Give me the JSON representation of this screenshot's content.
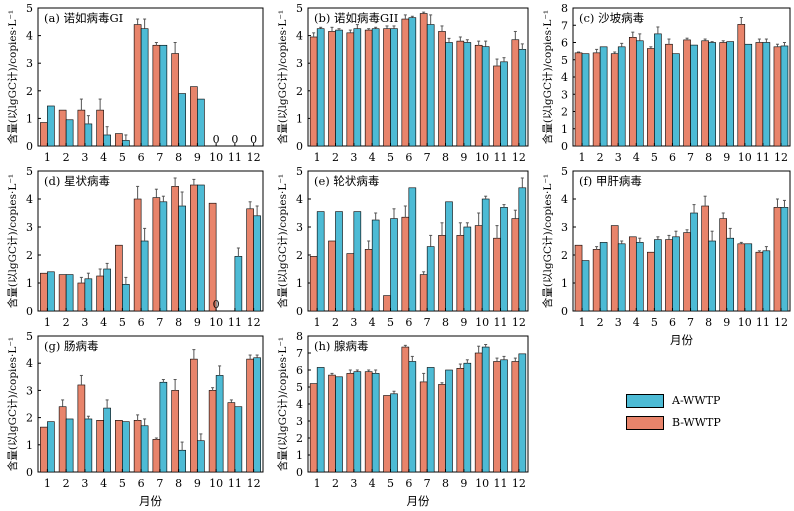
{
  "colors": {
    "a_wwtp": "#4DBBD5",
    "b_wwtp": "#E8846B",
    "axis": "#000000",
    "error_bar": "#555555"
  },
  "legend": {
    "placement": "bottom-right",
    "items": [
      {
        "label": "A-WWTP",
        "color": "#4DBBD5"
      },
      {
        "label": "B-WWTP",
        "color": "#E8846B"
      }
    ]
  },
  "chart_data": [
    {
      "type": "bar",
      "title": "(a) 诺如病毒GI",
      "ylabel": "含量(以lgGC计)/copies·L⁻¹",
      "xlabel": "",
      "ylim": [
        0,
        5
      ],
      "yticks": [
        0,
        1,
        2,
        3,
        4,
        5
      ],
      "categories": [
        "1",
        "2",
        "3",
        "4",
        "5",
        "6",
        "7",
        "8",
        "9",
        "10",
        "11",
        "12"
      ],
      "series": [
        {
          "name": "B-WWTP",
          "values": [
            0.85,
            1.3,
            1.3,
            1.3,
            0.45,
            4.4,
            3.65,
            3.35,
            2.15,
            0,
            0,
            0
          ],
          "errors": [
            0,
            0,
            0.4,
            0.4,
            0,
            0.2,
            0.1,
            0.4,
            0,
            0,
            0,
            0
          ]
        },
        {
          "name": "A-WWTP",
          "values": [
            1.45,
            0.95,
            0.8,
            0.4,
            0.2,
            4.25,
            3.65,
            1.9,
            1.7,
            0,
            0,
            0
          ],
          "errors": [
            0,
            0,
            0.3,
            0.3,
            0.2,
            0.35,
            0,
            0,
            0,
            0,
            0,
            0
          ]
        }
      ],
      "annotations": [
        {
          "category": "10",
          "text": "0"
        },
        {
          "category": "11",
          "text": "0"
        },
        {
          "category": "12",
          "text": "0"
        }
      ]
    },
    {
      "type": "bar",
      "title": "(b) 诺如病毒GII",
      "ylabel": "含量(以lgGC计)/copies·L⁻¹",
      "xlabel": "",
      "ylim": [
        0,
        5
      ],
      "yticks": [
        0,
        1,
        2,
        3,
        4,
        5
      ],
      "categories": [
        "1",
        "2",
        "3",
        "4",
        "5",
        "6",
        "7",
        "8",
        "9",
        "10",
        "11",
        "12"
      ],
      "series": [
        {
          "name": "B-WWTP",
          "values": [
            3.95,
            4.15,
            4.1,
            4.2,
            4.25,
            4.6,
            4.8,
            4.15,
            3.8,
            3.65,
            2.9,
            3.85
          ],
          "errors": [
            0.15,
            0.15,
            0.1,
            0.05,
            0.1,
            0.15,
            0.05,
            0.2,
            0.15,
            0.15,
            0.25,
            0.3
          ]
        },
        {
          "name": "A-WWTP",
          "values": [
            4.25,
            4.2,
            4.25,
            4.25,
            4.25,
            4.65,
            4.4,
            3.75,
            3.75,
            3.6,
            3.05,
            3.5
          ],
          "errors": [
            0.05,
            0.05,
            0.15,
            0.05,
            0.1,
            0.05,
            0.35,
            0.15,
            0.1,
            0.2,
            0.15,
            0.2
          ]
        }
      ]
    },
    {
      "type": "bar",
      "title": "(c) 沙坡病毒",
      "ylabel": "含量(以lgGC计)/copies·L⁻¹",
      "xlabel": "",
      "ylim": [
        0,
        8
      ],
      "yticks": [
        0,
        1,
        2,
        3,
        4,
        5,
        6,
        7,
        8
      ],
      "categories": [
        "1",
        "2",
        "3",
        "4",
        "5",
        "6",
        "7",
        "8",
        "9",
        "10",
        "11",
        "12"
      ],
      "series": [
        {
          "name": "B-WWTP",
          "values": [
            5.4,
            5.4,
            5.35,
            6.3,
            5.65,
            5.9,
            6.15,
            6.1,
            6.0,
            7.05,
            6.0,
            5.75
          ],
          "errors": [
            0.05,
            0.2,
            0.1,
            0.3,
            0.1,
            0.3,
            0.1,
            0.1,
            0.1,
            0.4,
            0.2,
            0.15
          ]
        },
        {
          "name": "A-WWTP",
          "values": [
            5.35,
            5.75,
            5.75,
            6.1,
            6.5,
            5.35,
            5.85,
            6.0,
            6.05,
            5.9,
            6.0,
            5.8
          ],
          "errors": [
            0,
            0,
            0.2,
            0.4,
            0.4,
            0,
            0,
            0.05,
            0,
            0,
            0.2,
            0.2
          ]
        }
      ]
    },
    {
      "type": "bar",
      "title": "(d) 星状病毒",
      "ylabel": "含量(以lgGC计)/copies·L⁻¹",
      "xlabel": "",
      "ylim": [
        0,
        5
      ],
      "yticks": [
        0,
        1,
        2,
        3,
        4,
        5
      ],
      "categories": [
        "1",
        "2",
        "3",
        "4",
        "5",
        "6",
        "7",
        "8",
        "9",
        "10",
        "11",
        "12"
      ],
      "series": [
        {
          "name": "B-WWTP",
          "values": [
            1.35,
            1.3,
            1.0,
            1.25,
            2.35,
            4.0,
            4.05,
            4.45,
            4.5,
            3.85,
            0,
            3.65
          ],
          "errors": [
            0,
            0,
            0.2,
            0.25,
            0,
            0.45,
            0.3,
            0.3,
            0.2,
            0,
            0,
            0.25
          ]
        },
        {
          "name": "A-WWTP",
          "values": [
            1.4,
            1.3,
            1.15,
            1.5,
            0.95,
            2.5,
            3.9,
            3.75,
            4.5,
            0,
            1.95,
            3.4
          ],
          "errors": [
            0,
            0,
            0.2,
            0.2,
            0.25,
            0.45,
            0.2,
            0.5,
            0,
            0,
            0.3,
            0.35
          ]
        }
      ],
      "annotations": [
        {
          "category": "10",
          "text": "0"
        }
      ]
    },
    {
      "type": "bar",
      "title": "(e) 轮状病毒",
      "ylabel": "含量(以lgGC计)/copies·L⁻¹",
      "xlabel": "",
      "ylim": [
        0,
        5
      ],
      "yticks": [
        0,
        1,
        2,
        3,
        4,
        5
      ],
      "categories": [
        "1",
        "2",
        "3",
        "4",
        "5",
        "6",
        "7",
        "8",
        "9",
        "10",
        "11",
        "12"
      ],
      "series": [
        {
          "name": "B-WWTP",
          "values": [
            1.95,
            2.5,
            2.05,
            2.2,
            0.55,
            3.35,
            1.3,
            2.7,
            2.7,
            3.05,
            2.6,
            3.3
          ],
          "errors": [
            0,
            0,
            0,
            0.3,
            0,
            0.4,
            0.1,
            0.45,
            0.45,
            0.45,
            0.45,
            0.3
          ]
        },
        {
          "name": "A-WWTP",
          "values": [
            3.55,
            3.55,
            3.55,
            3.25,
            3.3,
            4.4,
            2.3,
            3.9,
            3.0,
            4.0,
            3.7,
            4.4
          ],
          "errors": [
            0,
            0,
            0,
            0.25,
            0.35,
            0,
            0.4,
            0,
            0.15,
            0.1,
            0.1,
            0.35
          ]
        }
      ]
    },
    {
      "type": "bar",
      "title": "(f) 甲肝病毒",
      "ylabel": "含量(以lgGC计)/copies·L⁻¹",
      "xlabel": "月份",
      "ylim": [
        0,
        5
      ],
      "yticks": [
        0,
        1,
        2,
        3,
        4,
        5
      ],
      "categories": [
        "1",
        "2",
        "3",
        "4",
        "5",
        "6",
        "7",
        "8",
        "9",
        "10",
        "11",
        "12"
      ],
      "series": [
        {
          "name": "B-WWTP",
          "values": [
            2.35,
            2.2,
            3.05,
            2.65,
            2.1,
            2.55,
            2.8,
            3.75,
            3.3,
            2.4,
            2.1,
            3.7
          ],
          "errors": [
            0,
            0.1,
            0,
            0,
            0,
            0.15,
            0.1,
            0.35,
            0.2,
            0.05,
            0.05,
            0.3
          ]
        },
        {
          "name": "A-WWTP",
          "values": [
            1.8,
            2.45,
            2.4,
            2.45,
            2.55,
            2.65,
            3.5,
            2.5,
            2.6,
            2.4,
            2.15,
            3.7
          ],
          "errors": [
            0,
            0,
            0.1,
            0.15,
            0.1,
            0.2,
            0.3,
            0.35,
            0.35,
            0,
            0.15,
            0.25
          ]
        }
      ]
    },
    {
      "type": "bar",
      "title": "(g) 肠病毒",
      "ylabel": "含量(以lgGC计)/copies·L⁻¹",
      "xlabel": "月份",
      "ylim": [
        0,
        5
      ],
      "yticks": [
        0,
        1,
        2,
        3,
        4,
        5
      ],
      "categories": [
        "1",
        "2",
        "3",
        "4",
        "5",
        "6",
        "7",
        "8",
        "9",
        "10",
        "11",
        "12"
      ],
      "series": [
        {
          "name": "B-WWTP",
          "values": [
            1.65,
            2.4,
            3.2,
            1.9,
            1.9,
            1.9,
            1.2,
            3.0,
            4.15,
            3.0,
            2.55,
            4.15
          ],
          "errors": [
            0,
            0.25,
            0.35,
            0,
            0,
            0.2,
            0.05,
            0.4,
            0.35,
            0.1,
            0.1,
            0.15
          ]
        },
        {
          "name": "A-WWTP",
          "values": [
            1.85,
            1.95,
            1.95,
            2.35,
            1.85,
            1.7,
            3.3,
            0.8,
            1.15,
            3.55,
            2.4,
            4.2
          ],
          "errors": [
            0,
            0,
            0.1,
            0.3,
            0,
            0.25,
            0.1,
            0.3,
            0.25,
            0.35,
            0,
            0.1
          ]
        }
      ]
    },
    {
      "type": "bar",
      "title": "(h) 腺病毒",
      "ylabel": "含量(以lgGC计)/copies·L⁻¹",
      "xlabel": "月份",
      "ylim": [
        0,
        8
      ],
      "yticks": [
        0,
        1,
        2,
        3,
        4,
        5,
        6,
        7,
        8
      ],
      "categories": [
        "1",
        "2",
        "3",
        "4",
        "5",
        "6",
        "7",
        "8",
        "9",
        "10",
        "11",
        "12"
      ],
      "series": [
        {
          "name": "B-WWTP",
          "values": [
            5.2,
            5.7,
            5.8,
            5.9,
            4.5,
            7.35,
            5.3,
            5.15,
            6.1,
            7.0,
            6.5,
            6.5
          ],
          "errors": [
            0,
            0.1,
            0.2,
            0.1,
            0,
            0.1,
            0.5,
            0.1,
            0.25,
            0.4,
            0.2,
            0.2
          ]
        },
        {
          "name": "A-WWTP",
          "values": [
            6.15,
            5.6,
            5.9,
            5.8,
            4.6,
            6.5,
            6.15,
            6.0,
            6.4,
            7.35,
            6.6,
            6.95
          ],
          "errors": [
            0,
            0,
            0.1,
            0.2,
            0.15,
            0.3,
            0,
            0,
            0.2,
            0.15,
            0.2,
            0
          ]
        }
      ]
    }
  ]
}
